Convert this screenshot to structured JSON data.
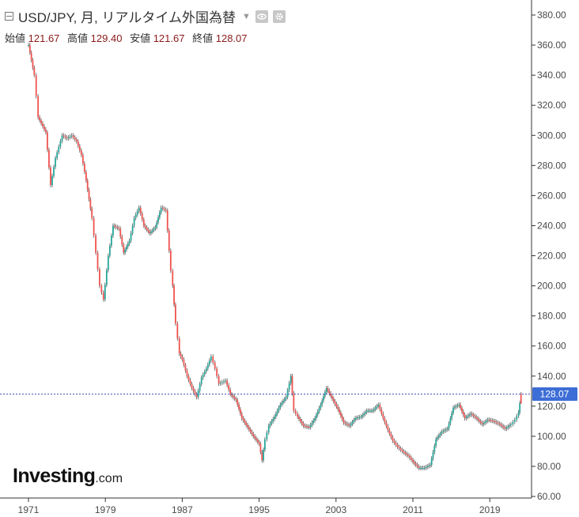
{
  "header": {
    "title": "USD/JPY, 月, リアルタイム外国為替",
    "ohlc": [
      {
        "label": "始値",
        "value": "121.67"
      },
      {
        "label": "高値",
        "value": "129.40"
      },
      {
        "label": "安値",
        "value": "121.67"
      },
      {
        "label": "終値",
        "value": "128.07"
      }
    ]
  },
  "logo": {
    "brand": "Investing",
    "tld": ".com"
  },
  "price_tag": "128.07",
  "colors": {
    "up": "#26a69a",
    "down": "#ef5350",
    "wick": "#555555",
    "last_price_line": "#3f51b5",
    "price_tag_bg": "#3d6dd6"
  },
  "icons": [
    "collapse-icon",
    "caret-down-icon",
    "eye-icon",
    "gear-icon"
  ],
  "chart_data": {
    "type": "candlestick",
    "symbol": "USD/JPY",
    "interval": "monthly",
    "ylim": [
      60,
      390
    ],
    "x_ticks": [
      "1971",
      "1979",
      "1987",
      "1995",
      "2003",
      "2011",
      "2019"
    ],
    "y_ticks": [
      "380.00",
      "360.00",
      "340.00",
      "320.00",
      "300.00",
      "280.00",
      "260.00",
      "240.00",
      "220.00",
      "200.00",
      "180.00",
      "160.00",
      "140.00",
      "120.00",
      "100.00",
      "80.00",
      "60.00"
    ],
    "last_price": 128.07,
    "x": [
      1971.0,
      1971.6,
      1972.0,
      1972.8,
      1973.3,
      1973.8,
      1974.5,
      1975.0,
      1975.5,
      1976.0,
      1976.5,
      1977.0,
      1977.6,
      1978.0,
      1978.4,
      1978.8,
      1979.3,
      1979.8,
      1980.4,
      1980.9,
      1981.5,
      1982.0,
      1982.5,
      1983.0,
      1983.6,
      1984.2,
      1984.8,
      1985.3,
      1985.8,
      1986.0,
      1986.3,
      1986.7,
      1987.0,
      1987.5,
      1988.0,
      1988.5,
      1989.0,
      1989.5,
      1990.0,
      1990.4,
      1990.8,
      1991.5,
      1992.0,
      1992.6,
      1993.2,
      1993.8,
      1994.4,
      1995.0,
      1995.3,
      1995.6,
      1996.0,
      1996.6,
      1997.2,
      1997.8,
      1998.3,
      1998.6,
      1999.0,
      1999.6,
      2000.2,
      2000.8,
      2001.4,
      2002.0,
      2002.6,
      2003.2,
      2003.8,
      2004.4,
      2005.0,
      2005.6,
      2006.2,
      2006.8,
      2007.4,
      2007.9,
      2008.4,
      2008.9,
      2009.4,
      2009.9,
      2010.5,
      2011.0,
      2011.6,
      2012.2,
      2012.8,
      2013.4,
      2014.0,
      2014.6,
      2015.2,
      2015.8,
      2016.4,
      2017.0,
      2017.6,
      2018.2,
      2018.8,
      2019.4,
      2020.0,
      2020.6,
      2021.2,
      2021.6,
      2022.0,
      2022.25
    ],
    "close": [
      360,
      340,
      312,
      302,
      267,
      285,
      300,
      298,
      300,
      296,
      287,
      270,
      245,
      222,
      200,
      191,
      220,
      240,
      238,
      222,
      230,
      245,
      252,
      240,
      235,
      239,
      252,
      250,
      210,
      200,
      175,
      155,
      151,
      140,
      132,
      126,
      139,
      145,
      153,
      145,
      135,
      137,
      128,
      124,
      112,
      106,
      100,
      95,
      84,
      98,
      107,
      113,
      121,
      126,
      140,
      117,
      113,
      107,
      106,
      112,
      121,
      132,
      125,
      118,
      109,
      107,
      112,
      113,
      117,
      117,
      121,
      112,
      104,
      97,
      93,
      90,
      87,
      83,
      79,
      79,
      81,
      98,
      103,
      105,
      119,
      121,
      112,
      115,
      112,
      108,
      111,
      110,
      108,
      105,
      108,
      111,
      116,
      128.07
    ]
  }
}
